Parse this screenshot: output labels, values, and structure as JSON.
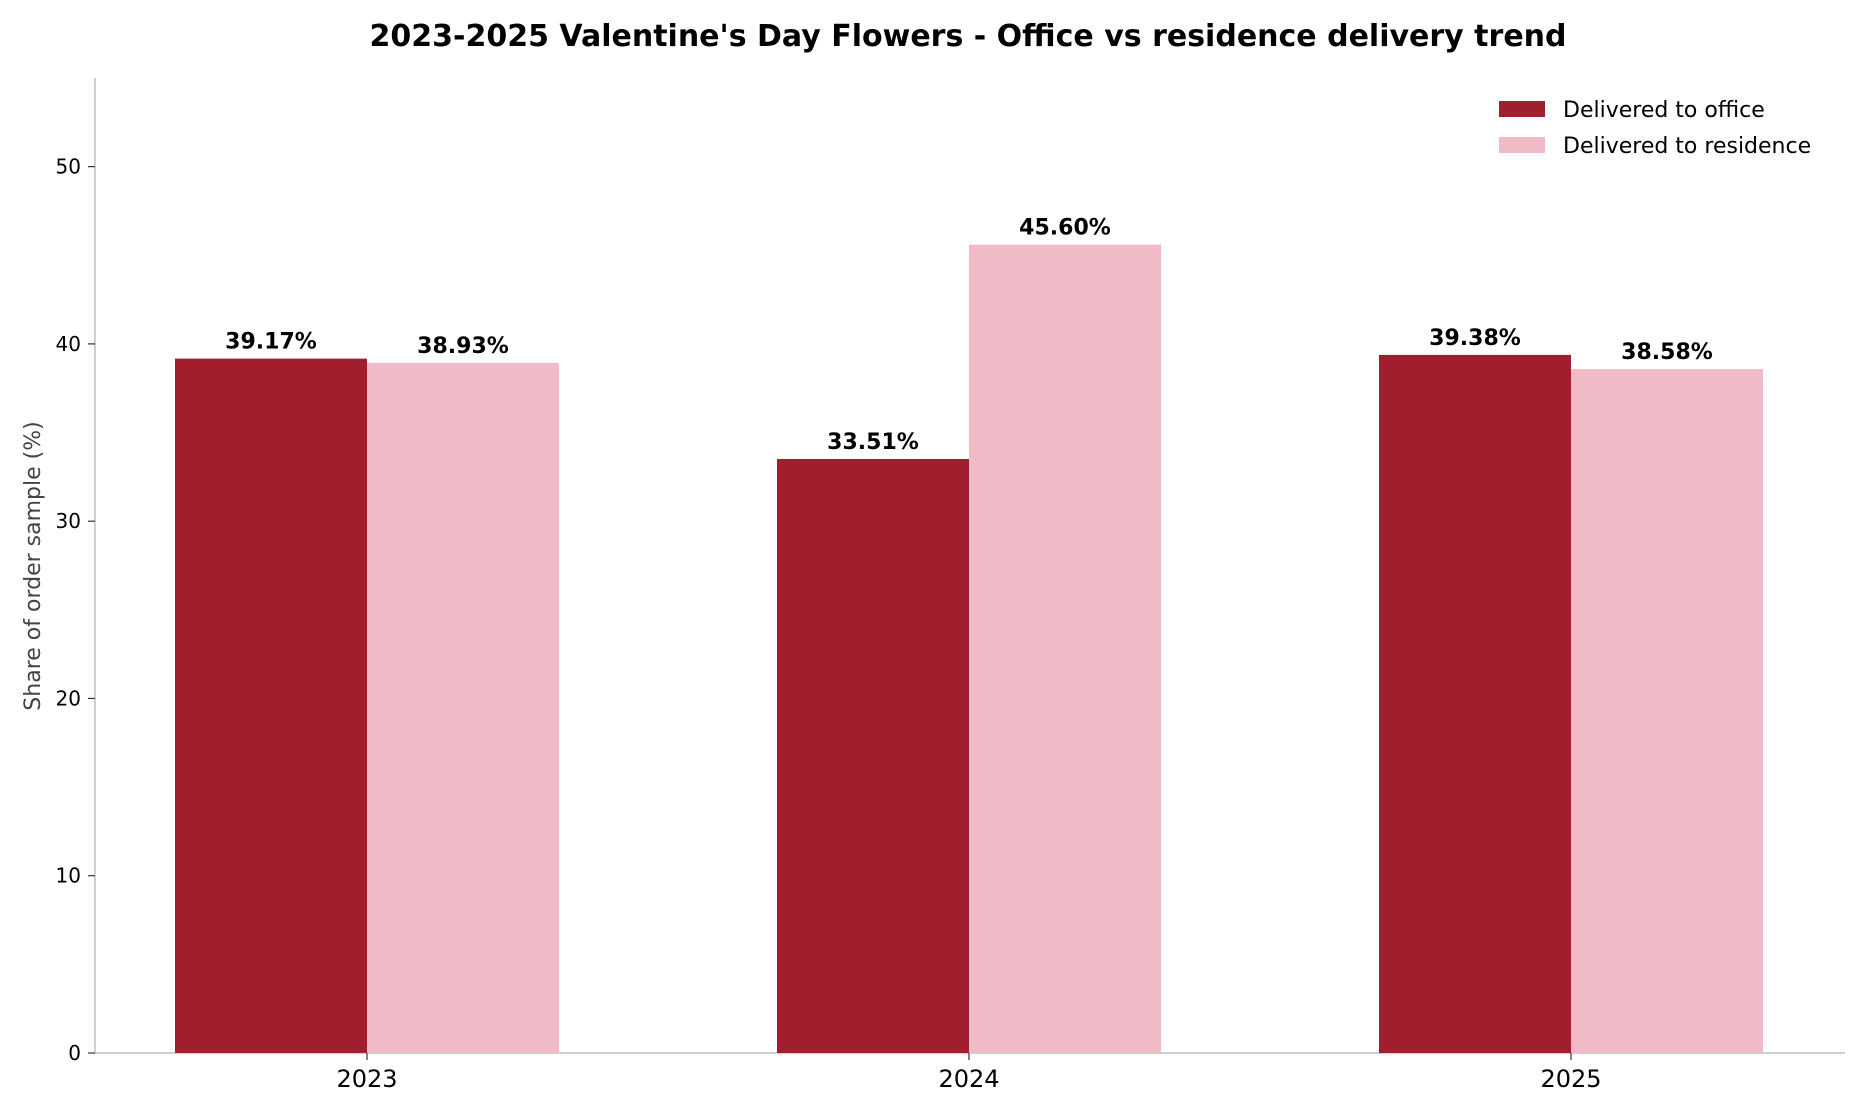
{
  "chart_data": {
    "type": "bar",
    "title": "2023-2025 Valentine's Day Flowers - Office vs residence delivery trend",
    "xlabel": "",
    "ylabel": "Share of order sample (%)",
    "categories": [
      "2023",
      "2024",
      "2025"
    ],
    "series": [
      {
        "name": "Delivered to office",
        "color": "#a01e2d",
        "values": [
          39.17,
          33.51,
          39.38
        ],
        "labels": [
          "39.17%",
          "33.51%",
          "39.38%"
        ]
      },
      {
        "name": "Delivered to residence",
        "color": "#f0bac7",
        "values": [
          38.93,
          45.6,
          38.58
        ],
        "labels": [
          "38.93%",
          "45.60%",
          "38.58%"
        ]
      }
    ],
    "ylim": [
      0,
      55
    ],
    "yticks": [
      0,
      10,
      20,
      30,
      40,
      50
    ],
    "grid": false,
    "legend_position": "top-right"
  }
}
